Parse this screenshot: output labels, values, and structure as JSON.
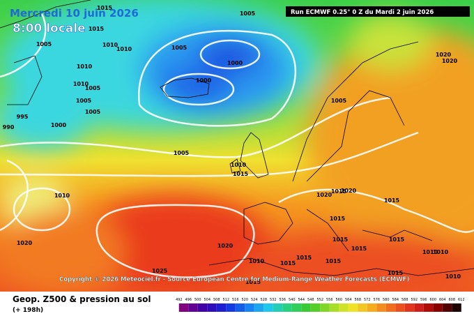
{
  "header": {
    "date": "Mercredi 10 juin 2026",
    "time": "8:00 locale",
    "run": "Run ECMWF 0.25° 0 Z du Mardi 2 juin 2026"
  },
  "map": {
    "pressure_labels": [
      1015,
      1015,
      1005,
      1005,
      1010,
      1010,
      1005,
      1000,
      1010,
      1010,
      1005,
      1000,
      1005,
      1005,
      995,
      1000,
      990,
      1005,
      1020,
      1020,
      1005,
      1010,
      1015,
      1010,
      1020,
      1015,
      1020,
      1015,
      1020,
      1020,
      1015,
      1015,
      1015,
      1015,
      1025,
      1010,
      1015,
      1015,
      1015,
      1015,
      1010,
      1010,
      1015,
      1010
    ]
  },
  "copyright": "Copyright © 2026 Meteociel.fr - Source European Centre for Medium-Range Weather Forecasts (ECMWF)",
  "footer": {
    "title": "Geop. Z500 & pression au sol",
    "lead": "(+ 198h)"
  },
  "scale": {
    "values": [
      492,
      496,
      500,
      504,
      508,
      512,
      516,
      520,
      524,
      528,
      532,
      536,
      540,
      544,
      548,
      552,
      556,
      560,
      564,
      568,
      572,
      576,
      580,
      584,
      588,
      592,
      596,
      600,
      604,
      608,
      612
    ]
  }
}
